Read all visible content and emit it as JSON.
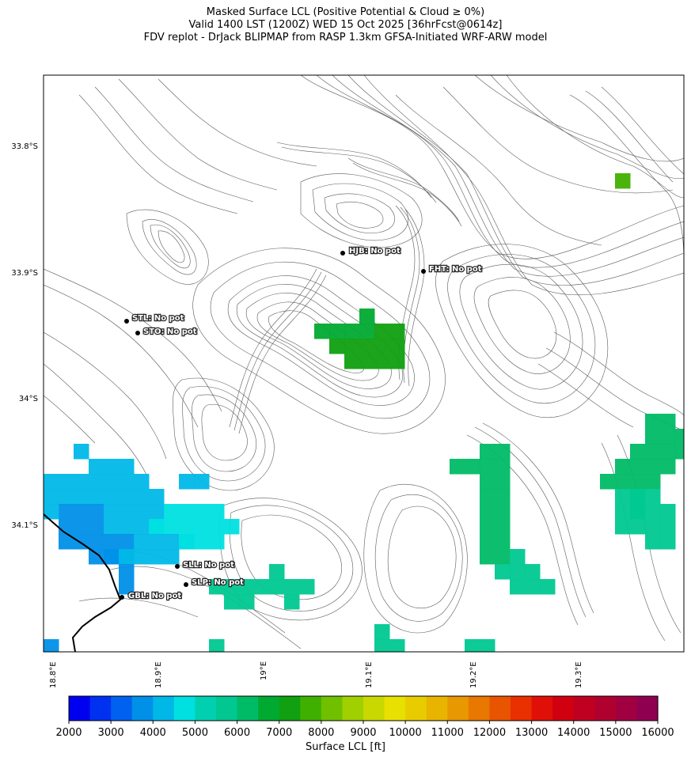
{
  "header": {
    "title_line1": "Masked Surface LCL (Positive Potential & Cloud ≥ 0%)",
    "title_line2": "Valid 1400 LST (1200Z) WED 15 Oct 2025 [36hrFcst@0614z]",
    "title_line3": "FDV replot - DrJack BLIPMAP from RASP 1.3km GFSA-Initiated WRF-ARW model"
  },
  "map": {
    "lat_labels": [
      "33.8°S",
      "33.9°S",
      "34°S",
      "34.1°S"
    ],
    "lon_labels": [
      "18.8°E",
      "18.9°E",
      "19°E",
      "19.1°E",
      "19.2°E",
      "19.3°E"
    ],
    "stations": [
      {
        "code": "HJB",
        "label": "HJB: No pot"
      },
      {
        "code": "FHT",
        "label": "FHT: No pot"
      },
      {
        "code": "STL",
        "label": "STL: No pot"
      },
      {
        "code": "STO",
        "label": "STO: No pot"
      },
      {
        "code": "SLL",
        "label": "SLL: No pot"
      },
      {
        "code": "SLP",
        "label": "SLP: No pot"
      },
      {
        "code": "GBL",
        "label": "GBL: No pot"
      }
    ],
    "contour_color": "#555555",
    "coast_color": "#000000"
  },
  "colorbar": {
    "label": "Surface LCL [ft]",
    "ticks": [
      "2000",
      "3000",
      "4000",
      "5000",
      "6000",
      "7000",
      "8000",
      "9000",
      "10000",
      "11000",
      "12000",
      "13000",
      "14000",
      "15000",
      "16000"
    ],
    "colors": [
      "#0000f0",
      "#0030f0",
      "#0060f0",
      "#0090e8",
      "#00b8e8",
      "#00e0e0",
      "#00d0b0",
      "#00c890",
      "#00bb66",
      "#00aa30",
      "#10a010",
      "#40b000",
      "#70c000",
      "#a0d000",
      "#c8d800",
      "#e8e000",
      "#e8cc00",
      "#e8b400",
      "#e89800",
      "#e87800",
      "#e85400",
      "#e83000",
      "#e01008",
      "#d00010",
      "#c00020",
      "#b00030",
      "#a00040",
      "#900050"
    ]
  }
}
